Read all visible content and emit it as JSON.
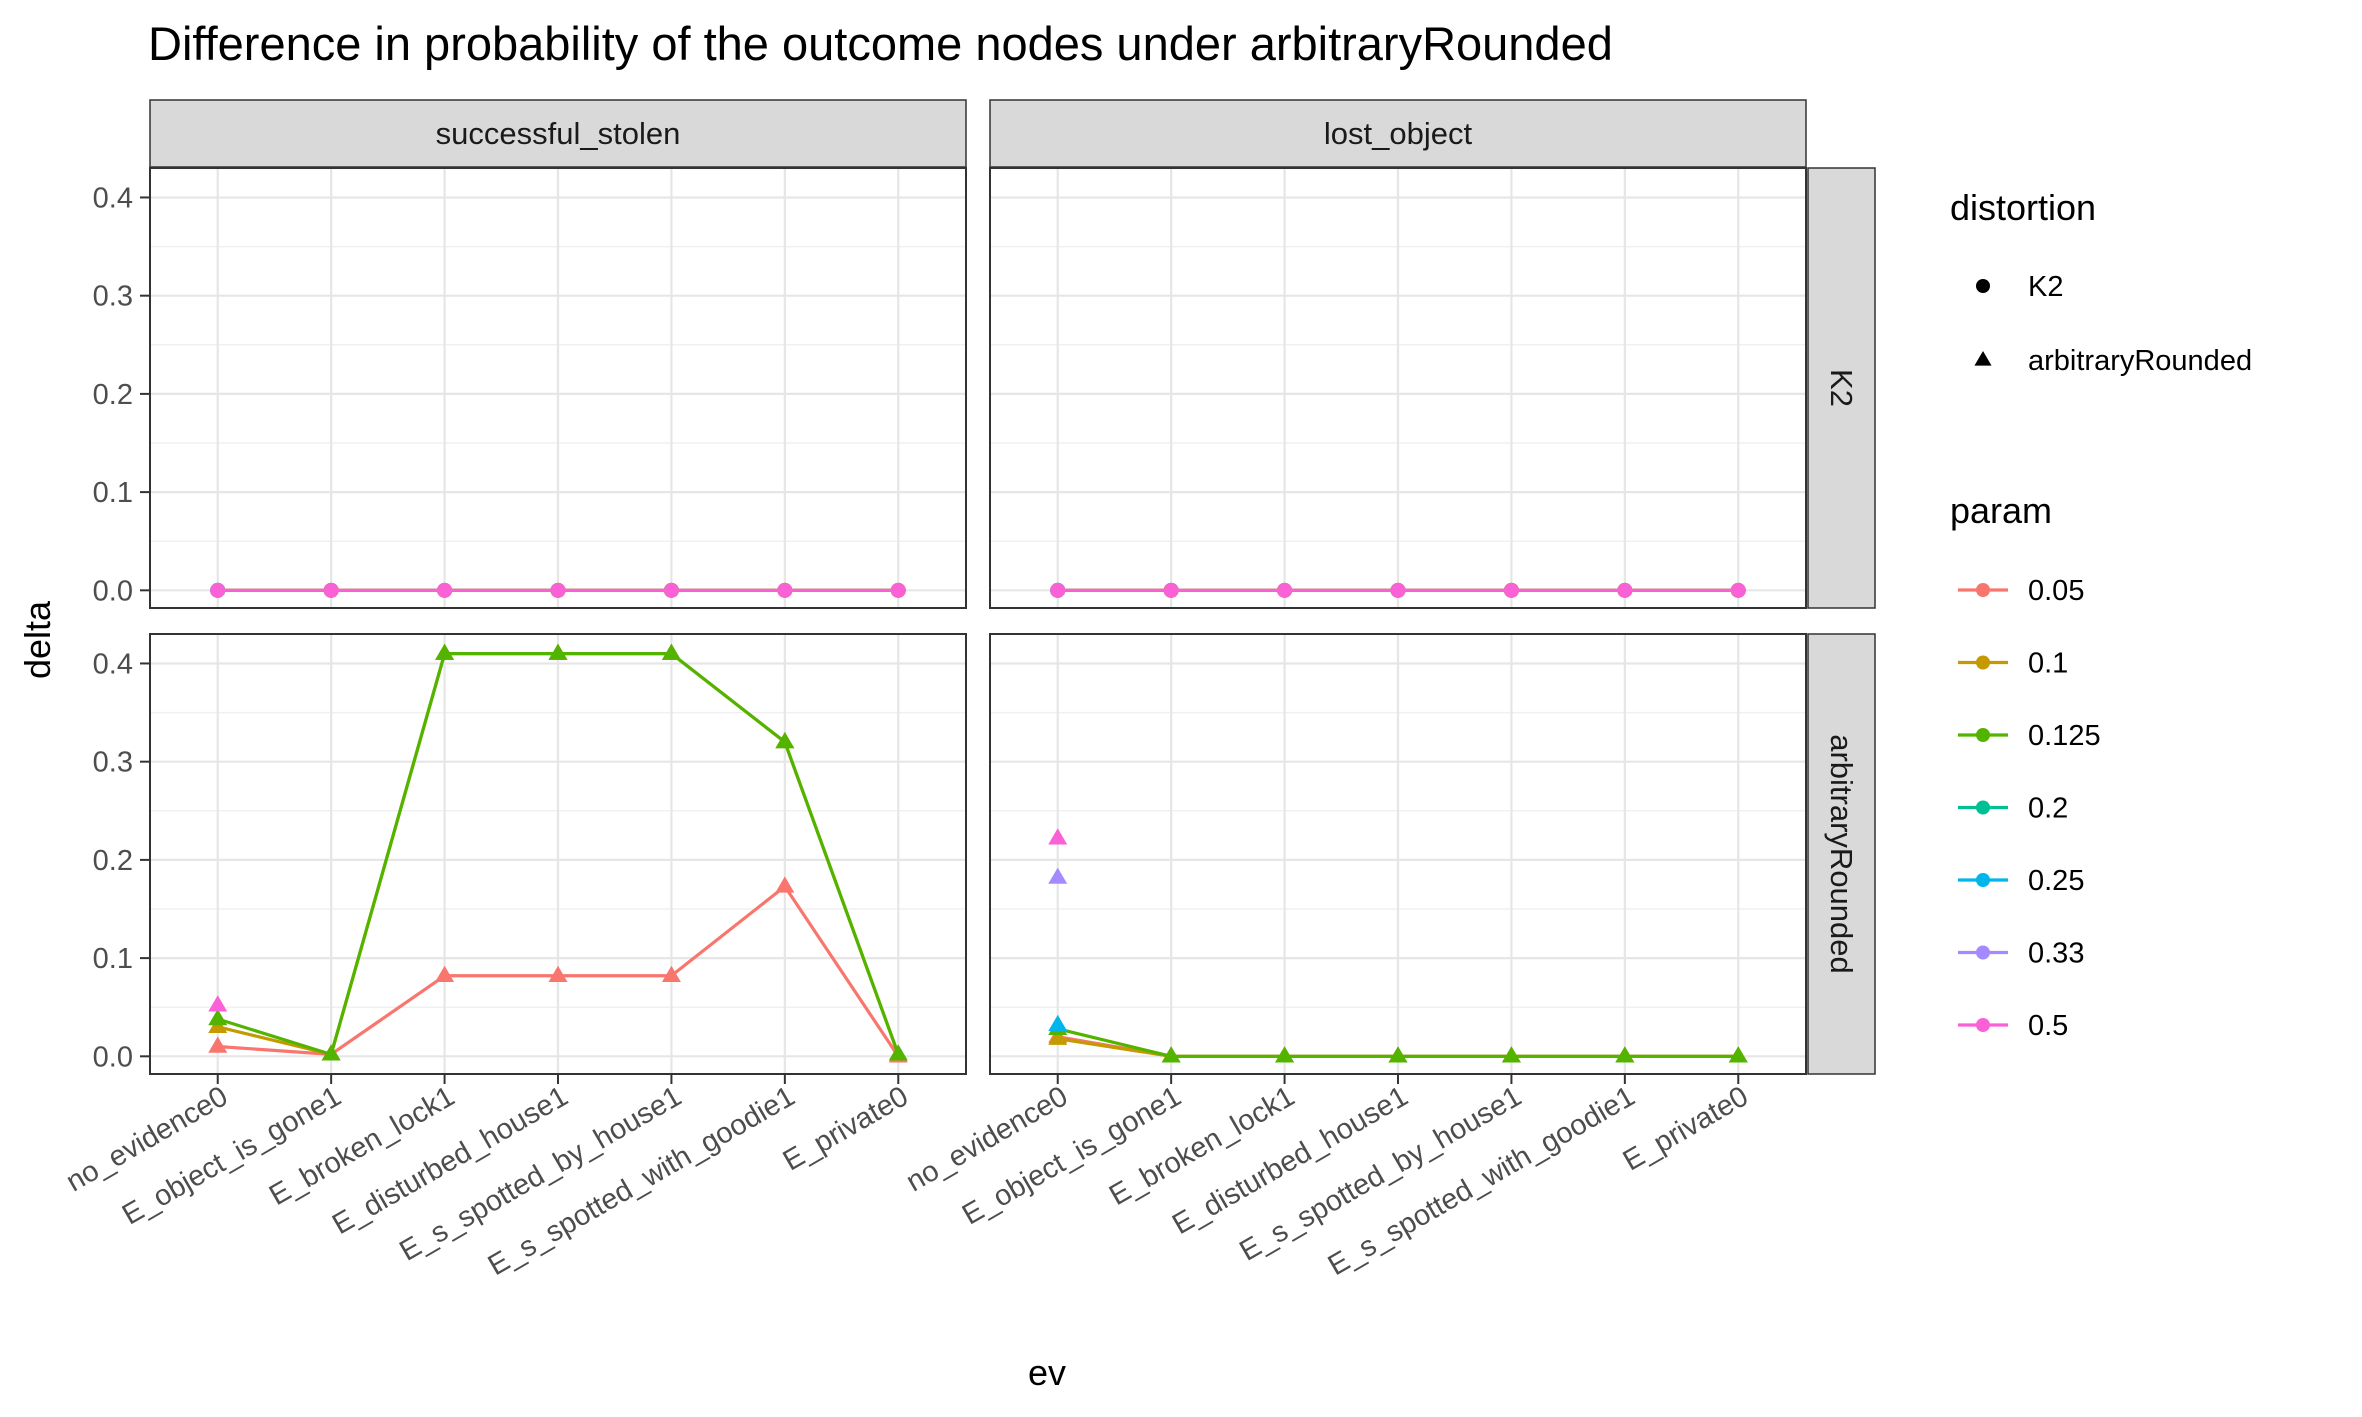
{
  "chart_data": {
    "type": "line",
    "title": "Difference in probability of the outcome nodes under arbitraryRounded",
    "xlabel": "ev",
    "ylabel": "delta",
    "ylim": [
      -0.018,
      0.43
    ],
    "yticks": [
      "0.0",
      "0.1",
      "0.2",
      "0.3",
      "0.4"
    ],
    "ytick_values": [
      0,
      0.1,
      0.2,
      0.3,
      0.4
    ],
    "grid": true,
    "categories": [
      "no_evidence0",
      "E_object_is_gone1",
      "E_broken_lock1",
      "E_disturbed_house1",
      "E_s_spotted_by_house1",
      "E_s_spotted_with_goodie1",
      "E_private0"
    ],
    "facet_cols": [
      "successful_stolen",
      "lost_object"
    ],
    "facet_rows": [
      "K2",
      "arbitraryRounded"
    ],
    "legend": {
      "placement": "right",
      "shape_title": "distortion",
      "shapes": [
        {
          "label": "K2",
          "shape": "circle"
        },
        {
          "label": "arbitraryRounded",
          "shape": "triangle"
        }
      ],
      "color_title": "param",
      "params": [
        {
          "label": "0.05",
          "color": "#F8766D"
        },
        {
          "label": "0.1",
          "color": "#C49A00"
        },
        {
          "label": "0.125",
          "color": "#53B400"
        },
        {
          "label": "0.2",
          "color": "#00C094"
        },
        {
          "label": "0.25",
          "color": "#00B6EB"
        },
        {
          "label": "0.33",
          "color": "#A58AFF"
        },
        {
          "label": "0.5",
          "color": "#FB61D7"
        }
      ]
    },
    "series": [
      {
        "facet_row": "K2",
        "facet_col": "successful_stolen",
        "param": "0.05",
        "shape": "circle",
        "values": [
          0,
          0,
          0,
          0,
          0,
          0,
          0
        ]
      },
      {
        "facet_row": "K2",
        "facet_col": "successful_stolen",
        "param": "0.1",
        "shape": "circle",
        "values": [
          0,
          0,
          0,
          0,
          0,
          0,
          0
        ]
      },
      {
        "facet_row": "K2",
        "facet_col": "successful_stolen",
        "param": "0.125",
        "shape": "circle",
        "values": [
          0,
          0,
          0,
          0,
          0,
          0,
          0
        ]
      },
      {
        "facet_row": "K2",
        "facet_col": "successful_stolen",
        "param": "0.2",
        "shape": "circle",
        "values": [
          0,
          null,
          null,
          null,
          null,
          null,
          null
        ]
      },
      {
        "facet_row": "K2",
        "facet_col": "successful_stolen",
        "param": "0.25",
        "shape": "circle",
        "values": [
          0,
          null,
          null,
          null,
          null,
          null,
          null
        ]
      },
      {
        "facet_row": "K2",
        "facet_col": "successful_stolen",
        "param": "0.33",
        "shape": "circle",
        "values": [
          0,
          null,
          null,
          null,
          null,
          null,
          null
        ]
      },
      {
        "facet_row": "K2",
        "facet_col": "successful_stolen",
        "param": "0.5",
        "shape": "circle",
        "values": [
          0,
          0,
          0,
          0,
          0,
          0,
          0
        ]
      },
      {
        "facet_row": "K2",
        "facet_col": "lost_object",
        "param": "0.05",
        "shape": "circle",
        "values": [
          0,
          0,
          0,
          0,
          0,
          0,
          0
        ]
      },
      {
        "facet_row": "K2",
        "facet_col": "lost_object",
        "param": "0.1",
        "shape": "circle",
        "values": [
          0,
          0,
          0,
          0,
          0,
          0,
          0
        ]
      },
      {
        "facet_row": "K2",
        "facet_col": "lost_object",
        "param": "0.125",
        "shape": "circle",
        "values": [
          0,
          0,
          0,
          0,
          0,
          0,
          0
        ]
      },
      {
        "facet_row": "K2",
        "facet_col": "lost_object",
        "param": "0.2",
        "shape": "circle",
        "values": [
          0,
          null,
          null,
          null,
          null,
          null,
          null
        ]
      },
      {
        "facet_row": "K2",
        "facet_col": "lost_object",
        "param": "0.25",
        "shape": "circle",
        "values": [
          0,
          null,
          null,
          null,
          null,
          null,
          null
        ]
      },
      {
        "facet_row": "K2",
        "facet_col": "lost_object",
        "param": "0.33",
        "shape": "circle",
        "values": [
          0,
          null,
          null,
          null,
          null,
          null,
          null
        ]
      },
      {
        "facet_row": "K2",
        "facet_col": "lost_object",
        "param": "0.5",
        "shape": "circle",
        "values": [
          0,
          0,
          0,
          0,
          0,
          0,
          0
        ]
      },
      {
        "facet_row": "arbitraryRounded",
        "facet_col": "successful_stolen",
        "param": "0.05",
        "shape": "triangle",
        "values": [
          0.01,
          0.002,
          0.082,
          0.082,
          0.082,
          0.173,
          0
        ]
      },
      {
        "facet_row": "arbitraryRounded",
        "facet_col": "successful_stolen",
        "param": "0.1",
        "shape": "triangle",
        "values": [
          0.03,
          0.002,
          0.41,
          0.41,
          0.41,
          0.32,
          0.002
        ]
      },
      {
        "facet_row": "arbitraryRounded",
        "facet_col": "successful_stolen",
        "param": "0.125",
        "shape": "triangle",
        "values": [
          0.038,
          0.002,
          0.41,
          0.41,
          0.41,
          0.32,
          0.002
        ]
      },
      {
        "facet_row": "arbitraryRounded",
        "facet_col": "successful_stolen",
        "param": "0.5",
        "shape": "triangle",
        "values": [
          0.052,
          null,
          null,
          null,
          null,
          null,
          null
        ]
      },
      {
        "facet_row": "arbitraryRounded",
        "facet_col": "lost_object",
        "param": "0.05",
        "shape": "triangle",
        "values": [
          0.02,
          0,
          0,
          0,
          0,
          0,
          0
        ]
      },
      {
        "facet_row": "arbitraryRounded",
        "facet_col": "lost_object",
        "param": "0.1",
        "shape": "triangle",
        "values": [
          0.018,
          0,
          0,
          0,
          0,
          0,
          0
        ]
      },
      {
        "facet_row": "arbitraryRounded",
        "facet_col": "lost_object",
        "param": "0.125",
        "shape": "triangle",
        "values": [
          0.028,
          0,
          0,
          0,
          0,
          0,
          0
        ]
      },
      {
        "facet_row": "arbitraryRounded",
        "facet_col": "lost_object",
        "param": "0.25",
        "shape": "triangle",
        "values": [
          0.032,
          null,
          null,
          null,
          null,
          null,
          null
        ]
      },
      {
        "facet_row": "arbitraryRounded",
        "facet_col": "lost_object",
        "param": "0.33",
        "shape": "triangle",
        "values": [
          0.182,
          null,
          null,
          null,
          null,
          null,
          null
        ]
      },
      {
        "facet_row": "arbitraryRounded",
        "facet_col": "lost_object",
        "param": "0.5",
        "shape": "triangle",
        "values": [
          0.222,
          null,
          null,
          null,
          null,
          null,
          null
        ]
      }
    ]
  }
}
